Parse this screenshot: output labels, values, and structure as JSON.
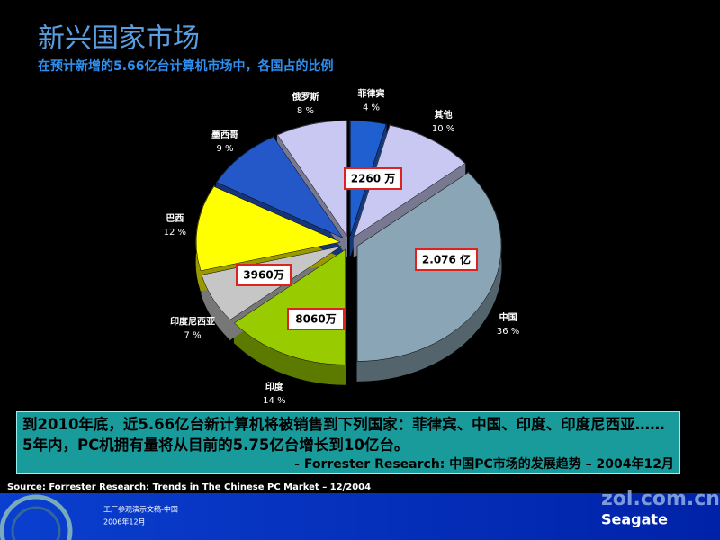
{
  "chart_data": {
    "type": "pie",
    "title": "新兴国家市场",
    "subtitle": "在预计新增的5.66亿台计算机市场中，各国占的比例",
    "categories": [
      "菲律宾",
      "其他",
      "中国",
      "印度",
      "印度尼西亚",
      "巴西",
      "墨西哥",
      "俄罗斯"
    ],
    "values": [
      4,
      10,
      36,
      14,
      7,
      12,
      9,
      8
    ],
    "value_labels": [
      "4 %",
      "10 %",
      "36 %",
      "14 %",
      "7 %",
      "12 %",
      "9 %",
      "8 %"
    ],
    "colors": [
      "#1f5fd0",
      "#c8c8f2",
      "#8aa6b6",
      "#99cc00",
      "#c6c6c6",
      "#ffff00",
      "#2457c8",
      "#c8c8f2"
    ],
    "annotations": [
      "2260 万",
      "2.076 亿",
      "3960万",
      "8060万"
    ]
  },
  "note": {
    "text": "到2010年底，近5.66亿台新计算机将被销售到下列国家：菲律宾、中国、印度、印度尼西亚……5年内，PC机拥有量将从目前的5.75亿台增长到10亿台。",
    "attribution": "- Forrester Research:  中国PC市场的发展趋势 – 2004年12月"
  },
  "source": "Source:  Forrester Research:  Trends in The Chinese PC Market – 12/2004",
  "footer": {
    "line1": "工厂参观演示文稿-中国",
    "line2": "2006年12月",
    "watermark": "zol.com.cn",
    "logo": "Seagate"
  }
}
